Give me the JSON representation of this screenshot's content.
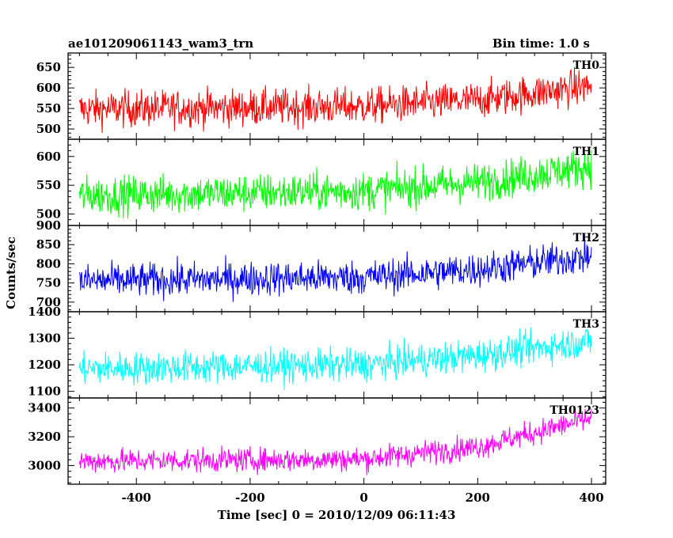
{
  "header": {
    "title_left": "ae101209061143_wam3_trn",
    "title_right": "Bin time: 1.0 s"
  },
  "chart_data": {
    "type": "line",
    "title": "ae101209061143_wam3_trn",
    "subtitle": "Bin time: 1.0 s",
    "xlabel": "Time [sec] 0 = 2010/12/09 06:11:43",
    "ylabel": "Counts/sec",
    "xlim": [
      -520,
      425
    ],
    "xticks": [
      -400,
      -200,
      0,
      200,
      400
    ],
    "x_range_of_data": [
      -500,
      400
    ],
    "bin_time_s": 1.0,
    "grid": false,
    "legend": "none (series labels printed top-right inside each panel)",
    "panels": [
      {
        "name": "TH0",
        "color": "#ff0000",
        "ylim": [
          475,
          685
        ],
        "yticks": [
          500,
          550,
          600,
          650
        ],
        "trend": [
          {
            "x": -500,
            "y": 548
          },
          {
            "x": 0,
            "y": 555
          },
          {
            "x": 200,
            "y": 570
          },
          {
            "x": 400,
            "y": 605
          }
        ],
        "noise_amplitude": 40
      },
      {
        "name": "TH1",
        "color": "#00ff00",
        "ylim": [
          480,
          630
        ],
        "yticks": [
          500,
          550,
          600
        ],
        "trend": [
          {
            "x": -500,
            "y": 532
          },
          {
            "x": 0,
            "y": 540
          },
          {
            "x": 200,
            "y": 555
          },
          {
            "x": 400,
            "y": 583
          }
        ],
        "noise_amplitude": 30
      },
      {
        "name": "TH2",
        "color": "#0000ff",
        "ylim": [
          675,
          900
        ],
        "yticks": [
          700,
          750,
          800,
          850,
          900
        ],
        "trend": [
          {
            "x": -500,
            "y": 755
          },
          {
            "x": 0,
            "y": 765
          },
          {
            "x": 200,
            "y": 785
          },
          {
            "x": 400,
            "y": 820
          }
        ],
        "noise_amplitude": 40
      },
      {
        "name": "TH3",
        "color": "#00ffff",
        "ylim": [
          1075,
          1400
        ],
        "yticks": [
          1100,
          1200,
          1300,
          1400
        ],
        "trend": [
          {
            "x": -500,
            "y": 1185
          },
          {
            "x": 0,
            "y": 1200
          },
          {
            "x": 200,
            "y": 1235
          },
          {
            "x": 400,
            "y": 1290
          }
        ],
        "noise_amplitude": 55
      },
      {
        "name": "TH0123",
        "color": "#ff00ff",
        "ylim": [
          2870,
          3470
        ],
        "yticks": [
          3000,
          3200,
          3400
        ],
        "trend": [
          {
            "x": -500,
            "y": 3030
          },
          {
            "x": 0,
            "y": 3045
          },
          {
            "x": 200,
            "y": 3130
          },
          {
            "x": 400,
            "y": 3330
          }
        ],
        "noise_amplitude": 75
      }
    ]
  }
}
